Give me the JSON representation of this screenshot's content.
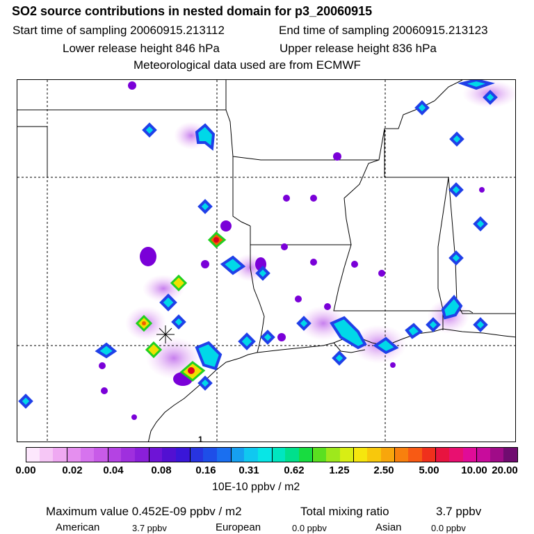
{
  "header": {
    "title": "SO2 source contributions in nested domain for p3_20060915",
    "start_sampling": "Start time of sampling 20060915.213112",
    "end_sampling": "End time of sampling 20060915.213123",
    "lower_release": "Lower release height  846 hPa",
    "upper_release": "Upper release height  836 hPa",
    "met_data": "Meteorological data used are from ECMWF"
  },
  "map": {
    "edge_label": "1",
    "colors": {
      "low": "#d78cf0",
      "mid": "#7a00d8",
      "blue": "#2040e8",
      "cyan": "#00d8e8",
      "green": "#20d020",
      "yellow": "#f0e000",
      "orange": "#f06000",
      "red": "#e00020"
    }
  },
  "colorbar": {
    "colors": [
      "#fde7fd",
      "#f6c7f6",
      "#efa9f2",
      "#e58fef",
      "#d673ee",
      "#c85be8",
      "#b443e3",
      "#9f2fde",
      "#8a1fda",
      "#6e14d6",
      "#5210d2",
      "#3a16d8",
      "#2834e0",
      "#1e4ee8",
      "#1a6ff0",
      "#16a0f0",
      "#10c8f0",
      "#08e6e6",
      "#00e6c0",
      "#00e08c",
      "#18dc40",
      "#5ae020",
      "#9ee81c",
      "#d8ee14",
      "#f6e60e",
      "#f8c80c",
      "#f8a60c",
      "#f8800e",
      "#f85a14",
      "#f0301c",
      "#e81440",
      "#e81070",
      "#e00c98",
      "#c80c9c",
      "#a00c88",
      "#700c70"
    ],
    "ticks": [
      "0.00",
      "0.02",
      "0.04",
      "0.08",
      "0.16",
      "0.31",
      "0.62",
      "1.25",
      "2.50",
      "5.00",
      "10.00",
      "20.00"
    ],
    "units": "10E-10 ppbv / m2"
  },
  "footer": {
    "maximum": "Maximum value  0.452E-09 ppbv / m2",
    "total_label": "Total mixing ratio",
    "total_value": "3.7 ppbv",
    "american_label": "American",
    "american_value": "3.7 ppbv",
    "european_label": "European",
    "european_value": "0.0 ppbv",
    "asian_label": "Asian",
    "asian_value": "0.0 ppbv"
  }
}
